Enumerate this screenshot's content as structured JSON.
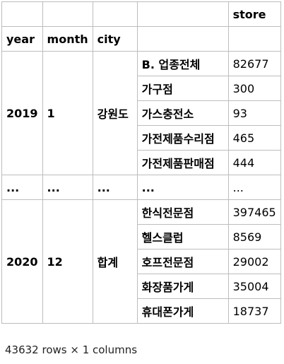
{
  "table": {
    "columns_header": [
      "",
      "",
      "",
      "",
      "store"
    ],
    "index_header": [
      "year",
      "month",
      "city"
    ],
    "groups": [
      {
        "year": "2019",
        "month": "1",
        "city": "강원도",
        "rows": [
          {
            "category": "B. 업종전체",
            "store": "82677"
          },
          {
            "category": "가구점",
            "store": "300"
          },
          {
            "category": "가스충전소",
            "store": "93"
          },
          {
            "category": "가전제품수리점",
            "store": "465"
          },
          {
            "category": "가전제품판매점",
            "store": "444"
          }
        ]
      },
      {
        "year": "2020",
        "month": "12",
        "city": "합계",
        "rows": [
          {
            "category": "한식전문점",
            "store": "397465"
          },
          {
            "category": "헬스클럽",
            "store": "8569"
          },
          {
            "category": "호프전문점",
            "store": "29002"
          },
          {
            "category": "화장품가게",
            "store": "35004"
          },
          {
            "category": "휴대폰가게",
            "store": "18737"
          }
        ]
      }
    ],
    "ellipsis": [
      "...",
      "...",
      "...",
      "...",
      "..."
    ]
  },
  "footer": "43632 rows × 1 columns"
}
